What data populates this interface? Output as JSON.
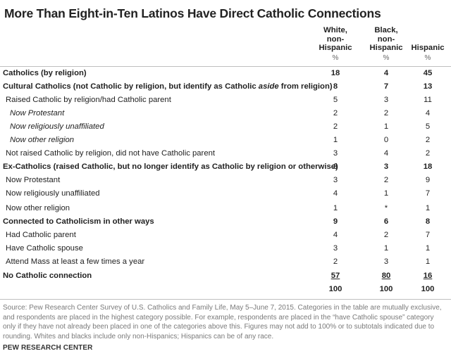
{
  "title": "More Than Eight-in-Ten Latinos Have Direct Catholic Connections",
  "columns": [
    {
      "line1": "White,",
      "line2": "non-",
      "line3": "Hispanic",
      "unit": "%"
    },
    {
      "line1": "Black,",
      "line2": "non-",
      "line3": "Hispanic",
      "unit": "%"
    },
    {
      "line1": "",
      "line2": "",
      "line3": "Hispanic",
      "unit": "%"
    }
  ],
  "rows": [
    {
      "label": "Catholics (by religion)",
      "values": [
        "18",
        "4",
        "45"
      ]
    },
    {
      "label_a": "Cultural Catholics (not Catholic by religion, but identify as Catholic ",
      "label_em": "aside",
      "label_b": " from religion)",
      "values": [
        "8",
        "7",
        "13"
      ]
    },
    {
      "label": "Raised Catholic by religion/had Catholic parent",
      "values": [
        "5",
        "3",
        "11"
      ]
    },
    {
      "label": "Now Protestant",
      "values": [
        "2",
        "2",
        "4"
      ]
    },
    {
      "label": "Now religiously unaffiliated",
      "values": [
        "2",
        "1",
        "5"
      ]
    },
    {
      "label": "Now other religion",
      "values": [
        "1",
        "0",
        "2"
      ]
    },
    {
      "label": "Not raised Catholic by religion, did not have Catholic parent",
      "values": [
        "3",
        "4",
        "2"
      ]
    },
    {
      "label": "Ex-Catholics (raised Catholic, but no longer identify as Catholic by religion or otherwise)",
      "values": [
        "8",
        "3",
        "18"
      ]
    },
    {
      "label": "Now Protestant",
      "values": [
        "3",
        "2",
        "9"
      ]
    },
    {
      "label": "Now religiously unaffiliated",
      "values": [
        "4",
        "1",
        "7"
      ]
    },
    {
      "label": "Now other religion",
      "values": [
        "1",
        "*",
        "1"
      ]
    },
    {
      "label": "Connected to Catholicism in other ways",
      "values": [
        "9",
        "6",
        "8"
      ]
    },
    {
      "label": "Had Catholic parent",
      "values": [
        "4",
        "2",
        "7"
      ]
    },
    {
      "label": "Have Catholic spouse",
      "values": [
        "3",
        "1",
        "1"
      ]
    },
    {
      "label": "Attend Mass at least a few times a year",
      "values": [
        "2",
        "3",
        "1"
      ]
    },
    {
      "label": "No Catholic connection",
      "values": [
        "57",
        "80",
        "16"
      ]
    }
  ],
  "totals": [
    "100",
    "100",
    "100"
  ],
  "note": "Source: Pew Research Center Survey of U.S. Catholics and Family Life, May 5–June 7, 2015. Categories in the table are mutually exclusive, and respondents are placed in the highest category possible. For example, respondents are placed in the “have Catholic spouse” category only if they have not already been placed in one of the categories above this. Figures may not add to 100% or to subtotals indicated due to rounding. Whites and blacks include only non-Hispanics; Hispanics can be of any race.",
  "source": "PEW RESEARCH CENTER"
}
